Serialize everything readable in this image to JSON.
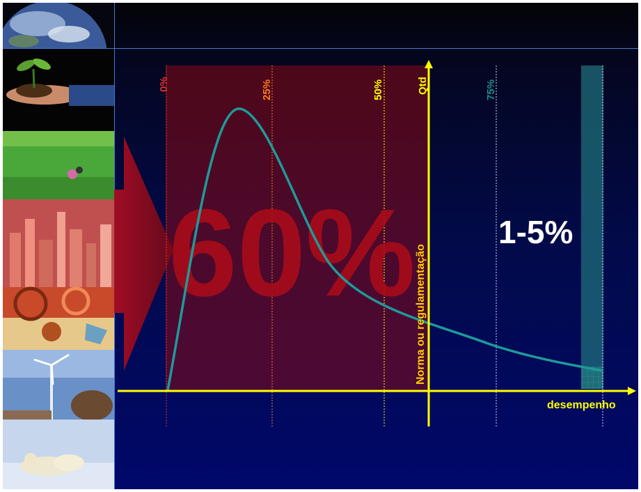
{
  "diagram": {
    "big_percent": "60%",
    "tail_percent": "1-5%",
    "y_axis_label": "Qtd",
    "x_axis_label": "desempenho",
    "norm_label": "Norma ou regulamentação",
    "quartiles": [
      {
        "label": "0%",
        "color": "#e8322a"
      },
      {
        "label": "25%",
        "color": "#ff7a1a"
      },
      {
        "label": "50%",
        "color": "#ffff00"
      },
      {
        "label": "75%",
        "color": "#1e8c8c"
      }
    ],
    "colors": {
      "axis": "#ffff00",
      "curve": "#1e9a9a",
      "highlight": "#8a0a14",
      "tail_band": "#1e6e7a"
    }
  },
  "photo_strip": {
    "icons": [
      "earth-icon",
      "seedling-hands-icon",
      "green-field-icon",
      "city-skyline-icon",
      "compass-map-icon",
      "wind-turbine-icon",
      "polar-bears-icon"
    ]
  }
}
